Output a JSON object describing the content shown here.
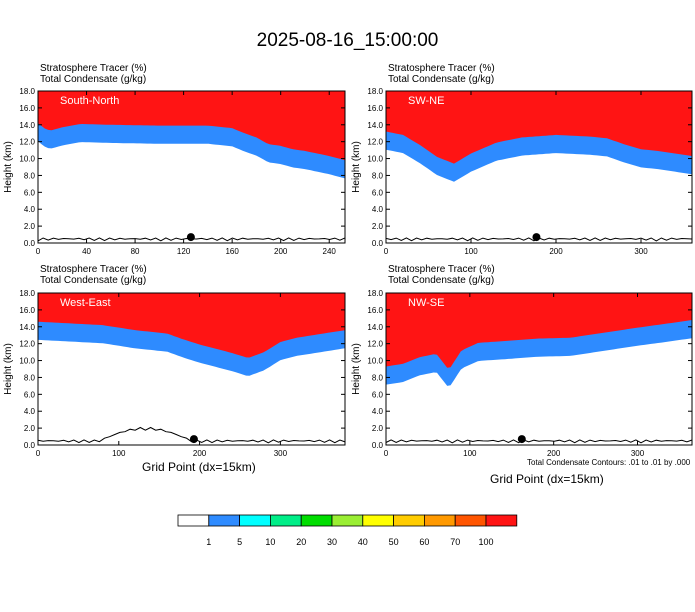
{
  "title": "2025-08-16_15:00:00",
  "panel_labels": {
    "line1": "Stratosphere Tracer   (%)",
    "line2": "Total Condensate   (g/kg)"
  },
  "x_axis_title": "Grid Point (dx=15km)",
  "contour_note": "Total Condensate Contours: .01 to .01 by .000",
  "colors": {
    "stratosphere_fill": "#ff1414",
    "panel_label_text": "#ffffff",
    "contour_line": "#000000"
  },
  "chart_data": [
    {
      "type": "heatmap",
      "panel_name": "South-North",
      "ylabel": "Height (km)",
      "ylim": [
        0,
        18
      ],
      "yticks": [
        "0.0",
        "2.0",
        "4.0",
        "6.0",
        "8.0",
        "10.0",
        "12.0",
        "14.0",
        "16.0",
        "18.0"
      ],
      "xlim": [
        0,
        253
      ],
      "xticks": [
        "0",
        "40",
        "80",
        "120",
        "160",
        "200",
        "240"
      ],
      "tropopause": {
        "x": [
          0,
          5,
          10,
          20,
          35,
          60,
          100,
          140,
          160,
          170,
          180,
          190,
          200,
          210,
          220,
          230,
          240,
          253
        ],
        "height": [
          14.2,
          13.6,
          13.3,
          13.7,
          14.1,
          14.0,
          13.9,
          13.9,
          13.6,
          13.0,
          12.5,
          11.7,
          11.5,
          11.1,
          10.9,
          10.6,
          10.3,
          9.8
        ]
      },
      "marker": {
        "x": 126,
        "height": 0.7
      }
    },
    {
      "type": "heatmap",
      "panel_name": "SW-NE",
      "ylabel": "Height (km)",
      "ylim": [
        0,
        18
      ],
      "yticks": [
        "0.0",
        "2.0",
        "4.0",
        "6.0",
        "8.0",
        "10.0",
        "12.0",
        "14.0",
        "16.0",
        "18.0"
      ],
      "xlim": [
        0,
        360
      ],
      "xticks": [
        "0",
        "100",
        "200",
        "300"
      ],
      "tropopause": {
        "x": [
          0,
          20,
          40,
          60,
          80,
          100,
          130,
          160,
          200,
          240,
          260,
          280,
          300,
          320,
          340,
          360
        ],
        "height": [
          13.2,
          12.8,
          11.6,
          10.2,
          9.4,
          10.6,
          11.9,
          12.5,
          12.8,
          12.6,
          12.4,
          11.7,
          11.1,
          10.9,
          10.6,
          10.3
        ]
      },
      "marker": {
        "x": 177,
        "height": 0.7
      }
    },
    {
      "type": "heatmap",
      "panel_name": "West-East",
      "ylabel": "Height (km)",
      "ylim": [
        0,
        18
      ],
      "yticks": [
        "0.0",
        "2.0",
        "4.0",
        "6.0",
        "8.0",
        "10.0",
        "12.0",
        "14.0",
        "16.0",
        "18.0"
      ],
      "xlim": [
        0,
        380
      ],
      "xticks": [
        "0",
        "100",
        "200",
        "300"
      ],
      "tropopause": {
        "x": [
          0,
          40,
          80,
          120,
          160,
          180,
          200,
          220,
          240,
          260,
          280,
          300,
          320,
          340,
          360,
          380
        ],
        "height": [
          14.6,
          14.4,
          14.2,
          13.6,
          13.2,
          12.5,
          11.9,
          11.4,
          10.9,
          10.3,
          11.0,
          12.2,
          12.7,
          13.0,
          13.3,
          13.6
        ]
      },
      "marker": {
        "x": 193,
        "height": 0.7
      }
    },
    {
      "type": "heatmap",
      "panel_name": "NW-SE",
      "ylabel": "Height (km)",
      "ylim": [
        0,
        18
      ],
      "yticks": [
        "0.0",
        "2.0",
        "4.0",
        "6.0",
        "8.0",
        "10.0",
        "12.0",
        "14.0",
        "16.0",
        "18.0"
      ],
      "xlim": [
        0,
        365
      ],
      "xticks": [
        "0",
        "100",
        "200",
        "300"
      ],
      "tropopause": {
        "x": [
          0,
          20,
          40,
          60,
          75,
          90,
          110,
          140,
          180,
          220,
          260,
          300,
          330,
          365
        ],
        "height": [
          9.3,
          9.6,
          10.4,
          10.8,
          8.9,
          11.2,
          12.1,
          12.3,
          12.6,
          12.7,
          13.3,
          13.9,
          14.3,
          14.8
        ]
      },
      "marker": {
        "x": 162,
        "height": 0.7
      }
    }
  ],
  "colorbar": {
    "labels": [
      "1",
      "5",
      "10",
      "20",
      "30",
      "40",
      "50",
      "60",
      "70",
      "100"
    ],
    "colors": [
      "#ffffff",
      "#2e8bff",
      "#00ffff",
      "#00ee88",
      "#00dd00",
      "#9aee33",
      "#ffff00",
      "#ffcc00",
      "#ff9900",
      "#ff5500",
      "#ff1414"
    ]
  }
}
